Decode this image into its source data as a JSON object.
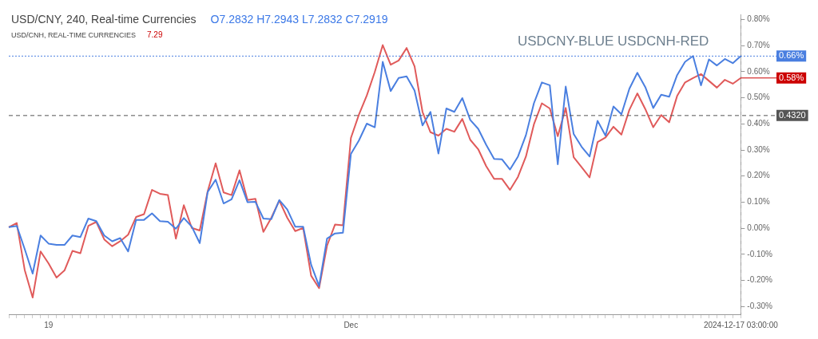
{
  "chart_data": {
    "type": "line",
    "title": "USD/CNY, 240, Real-time Currencies",
    "subtitle": "USD/CNH, REAL-TIME CURRENCIES",
    "annotations": [
      "O7.2832  H7.2943  L7.2832  C7.2919",
      "7.29",
      "USDCNY-BLUE USDCNH-RED",
      {
        "text": "0.58%",
        "x": "2024-12-17 03:00:00",
        "y": 0.576
      }
    ],
    "categories": [
      null,
      null,
      null,
      null,
      null,
      "19",
      null,
      null,
      null,
      null,
      null,
      null,
      null,
      null,
      null,
      null,
      null,
      null,
      null,
      null,
      null,
      null,
      null,
      null,
      null,
      null,
      null,
      null,
      null,
      null,
      null,
      null,
      null,
      null,
      null,
      null,
      null,
      null,
      null,
      null,
      null,
      null,
      null,
      "Dec",
      null,
      null,
      null,
      null,
      null,
      null,
      null,
      null,
      null,
      null,
      null,
      null,
      null,
      null,
      null,
      null,
      null,
      null,
      null,
      null,
      null,
      null,
      null,
      null,
      null,
      null,
      null,
      null,
      null,
      null,
      null,
      null,
      null,
      null,
      null,
      null,
      null,
      null,
      null,
      null,
      null,
      null,
      null,
      null,
      null,
      null,
      null,
      null,
      "2024-12-17 03:00:00"
    ],
    "series": [
      {
        "color": "#4a7fe0",
        "values": [
          0.004,
          0.009,
          -0.08,
          -0.174,
          -0.028,
          -0.059,
          -0.064,
          -0.064,
          -0.028,
          -0.034,
          0.037,
          0.027,
          -0.028,
          -0.05,
          -0.038,
          -0.089,
          0.032,
          0.032,
          0.057,
          0.027,
          0.025,
          -0.002,
          0.039,
          0.006,
          -0.057,
          0.139,
          0.186,
          0.095,
          0.111,
          0.184,
          0.1,
          0.101,
          0.037,
          0.035,
          0.108,
          0.072,
          0.006,
          0.006,
          -0.14,
          -0.222,
          -0.04,
          -0.02,
          -0.017,
          0.285,
          0.336,
          0.401,
          0.387,
          0.638,
          0.526,
          0.576,
          0.582,
          0.528,
          0.394,
          0.446,
          0.286,
          0.459,
          0.446,
          0.499,
          0.415,
          0.381,
          0.32,
          0.266,
          0.264,
          0.225,
          0.275,
          0.357,
          0.479,
          0.559,
          0.548,
          0.245,
          0.543,
          0.361,
          0.312,
          0.275,
          0.412,
          0.355,
          0.467,
          0.437,
          0.535,
          0.596,
          0.541,
          0.461,
          0.512,
          0.504,
          0.587,
          0.638,
          0.66,
          0.548,
          0.647,
          0.624,
          0.649,
          0.633,
          0.66
        ]
      },
      {
        "color": "#e05a5a",
        "values": [
          0.004,
          0.02,
          -0.16,
          -0.266,
          -0.089,
          -0.135,
          -0.189,
          -0.162,
          -0.087,
          -0.096,
          0.009,
          0.024,
          -0.043,
          -0.069,
          -0.05,
          -0.025,
          0.043,
          0.054,
          0.147,
          0.132,
          0.127,
          -0.04,
          0.088,
          0.001,
          -0.009,
          0.142,
          0.249,
          0.137,
          0.127,
          0.222,
          0.108,
          0.113,
          -0.014,
          0.04,
          0.106,
          0.04,
          -0.011,
          0.001,
          -0.182,
          -0.23,
          -0.067,
          0.014,
          0.011,
          0.346,
          0.435,
          0.509,
          0.599,
          0.702,
          0.627,
          0.643,
          0.691,
          0.621,
          0.446,
          0.368,
          0.355,
          0.381,
          0.37,
          0.419,
          0.339,
          0.303,
          0.238,
          0.189,
          0.189,
          0.147,
          0.197,
          0.275,
          0.398,
          0.479,
          0.459,
          0.353,
          0.461,
          0.272,
          0.234,
          0.195,
          0.33,
          0.348,
          0.389,
          0.359,
          0.454,
          0.517,
          0.457,
          0.387,
          0.434,
          0.406,
          0.507,
          0.559,
          0.576,
          0.591,
          0.565,
          0.539,
          0.569,
          0.554,
          0.576
        ]
      }
    ],
    "ylim": [
      -0.33,
      0.82
    ],
    "yticks": [
      {
        "value": -0.3,
        "label": "-0.30%"
      },
      {
        "value": -0.2,
        "label": "-0.20%"
      },
      {
        "value": -0.1,
        "label": "-0.10%"
      },
      {
        "value": 0,
        "label": "0.00%"
      },
      {
        "value": 0.1,
        "label": "0.10%"
      },
      {
        "value": 0.2,
        "label": "0.20%"
      },
      {
        "value": 0.3,
        "label": "0.30%"
      },
      {
        "value": 0.4,
        "label": "0.40%"
      },
      {
        "value": 0.5,
        "label": "0.50%"
      },
      {
        "value": 0.6,
        "label": "0.60%"
      },
      {
        "value": 0.7,
        "label": "0.70%"
      },
      {
        "value": 0.8,
        "label": "0.80%"
      }
    ],
    "ref_lines": [
      {
        "axis": "y",
        "value": 0.66,
        "label": "0.66%",
        "color": "#4a7fe0",
        "line_style": "dotted"
      },
      {
        "axis": "y",
        "value": 0.432,
        "label": "0.4320",
        "color": "#555555",
        "line_style": "dashed"
      },
      {
        "axis": "x",
        "value": "2024-12-17 03:00:00",
        "color": "#bbbbbb",
        "line_style": "dashed"
      }
    ],
    "grid": false,
    "legend": false,
    "marker": "none",
    "line_style": "solid"
  }
}
